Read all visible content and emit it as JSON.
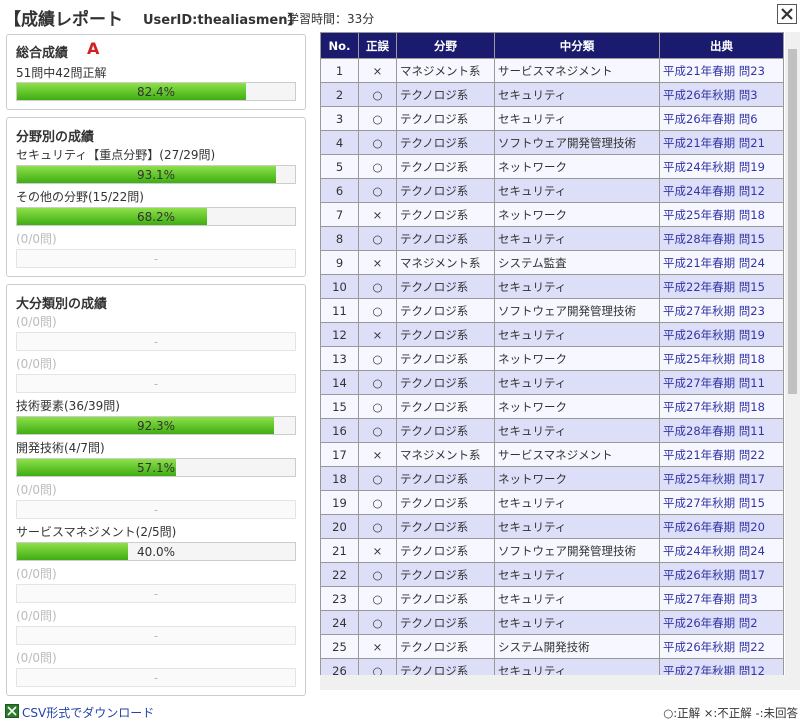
{
  "header": {
    "title": "【成績レポート",
    "user": "UserID:thealiasmen】",
    "time": "学習時間：33分"
  },
  "overall": {
    "title": "総合成績",
    "grade": "A",
    "summary": "51問中42問正解",
    "rate": {
      "value": 82.4,
      "label": "82.4%"
    }
  },
  "field": {
    "title": "分野別の成績",
    "items": [
      {
        "label": "セキュリティ【重点分野】(27/29問)",
        "rate": {
          "value": 93.1,
          "label": "93.1%"
        }
      },
      {
        "label": "その他の分野(15/22問)",
        "rate": {
          "value": 68.2,
          "label": "68.2%"
        }
      },
      {
        "label": "(0/0問)",
        "rate": "-"
      }
    ]
  },
  "category": {
    "title": "大分類別の成績",
    "items": [
      {
        "label": "(0/0問)",
        "rate": "-"
      },
      {
        "label": "(0/0問)",
        "rate": "-"
      },
      {
        "label": "技術要素(36/39問)",
        "rate": {
          "value": 92.3,
          "label": "92.3%"
        }
      },
      {
        "label": "開発技術(4/7問)",
        "rate": {
          "value": 57.1,
          "label": "57.1%"
        }
      },
      {
        "label": "(0/0問)",
        "rate": "-"
      },
      {
        "label": "サービスマネジメント(2/5問)",
        "rate": {
          "value": 40.0,
          "label": "40.0%"
        }
      },
      {
        "label": "(0/0問)",
        "rate": "-"
      },
      {
        "label": "(0/0問)",
        "rate": "-"
      },
      {
        "label": "(0/0問)",
        "rate": "-"
      }
    ]
  },
  "table": {
    "columns": [
      "No.",
      "正誤",
      "分野",
      "中分類",
      "出典"
    ],
    "rows": [
      [
        1,
        "×",
        "マネジメント系",
        "サービスマネジメント",
        "平成21年春期 問23"
      ],
      [
        2,
        "○",
        "テクノロジ系",
        "セキュリティ",
        "平成26年秋期 問3"
      ],
      [
        3,
        "○",
        "テクノロジ系",
        "セキュリティ",
        "平成26年春期 問6"
      ],
      [
        4,
        "○",
        "テクノロジ系",
        "ソフトウェア開発管理技術",
        "平成21年春期 問21"
      ],
      [
        5,
        "○",
        "テクノロジ系",
        "ネットワーク",
        "平成24年秋期 問19"
      ],
      [
        6,
        "○",
        "テクノロジ系",
        "セキュリティ",
        "平成24年春期 問12"
      ],
      [
        7,
        "×",
        "テクノロジ系",
        "ネットワーク",
        "平成25年春期 問18"
      ],
      [
        8,
        "○",
        "テクノロジ系",
        "セキュリティ",
        "平成28年春期 問15"
      ],
      [
        9,
        "×",
        "マネジメント系",
        "システム監査",
        "平成21年春期 問24"
      ],
      [
        10,
        "○",
        "テクノロジ系",
        "セキュリティ",
        "平成22年春期 問15"
      ],
      [
        11,
        "○",
        "テクノロジ系",
        "ソフトウェア開発管理技術",
        "平成27年秋期 問23"
      ],
      [
        12,
        "×",
        "テクノロジ系",
        "セキュリティ",
        "平成26年秋期 問19"
      ],
      [
        13,
        "○",
        "テクノロジ系",
        "ネットワーク",
        "平成25年秋期 問18"
      ],
      [
        14,
        "○",
        "テクノロジ系",
        "セキュリティ",
        "平成27年春期 問11"
      ],
      [
        15,
        "○",
        "テクノロジ系",
        "ネットワーク",
        "平成27年秋期 問18"
      ],
      [
        16,
        "○",
        "テクノロジ系",
        "セキュリティ",
        "平成28年春期 問11"
      ],
      [
        17,
        "×",
        "マネジメント系",
        "サービスマネジメント",
        "平成21年春期 問22"
      ],
      [
        18,
        "○",
        "テクノロジ系",
        "ネットワーク",
        "平成25年秋期 問17"
      ],
      [
        19,
        "○",
        "テクノロジ系",
        "セキュリティ",
        "平成27年秋期 問15"
      ],
      [
        20,
        "○",
        "テクノロジ系",
        "セキュリティ",
        "平成26年春期 問20"
      ],
      [
        21,
        "×",
        "テクノロジ系",
        "ソフトウェア開発管理技術",
        "平成24年秋期 問24"
      ],
      [
        22,
        "○",
        "テクノロジ系",
        "セキュリティ",
        "平成26年秋期 問17"
      ],
      [
        23,
        "○",
        "テクノロジ系",
        "セキュリティ",
        "平成27年春期 問3"
      ],
      [
        24,
        "○",
        "テクノロジ系",
        "セキュリティ",
        "平成26年春期 問2"
      ],
      [
        25,
        "×",
        "テクノロジ系",
        "システム開発技術",
        "平成26年秋期 問22"
      ],
      [
        26,
        "○",
        "テクノロジ系",
        "セキュリティ",
        "平成27年秋期 問12"
      ]
    ]
  },
  "footer": {
    "download": "CSV形式でダウンロード",
    "legend": "○:正解 ×:不正解 -:未回答"
  }
}
